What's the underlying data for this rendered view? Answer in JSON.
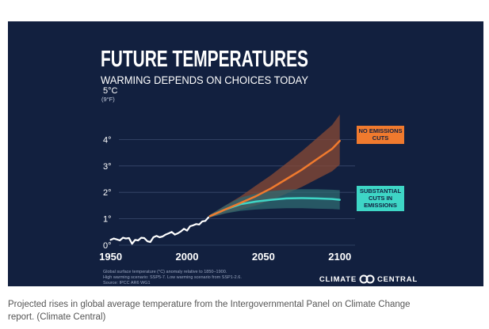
{
  "caption": {
    "line1": "Projected rises in global average temperature from the Intergovernmental Panel on Climate Change",
    "line2": "report. (Climate Central)"
  },
  "colors": {
    "panel_bg": "#12203f",
    "observed": "#ffffff",
    "no_cuts": "#f07a2e",
    "no_cuts_band": "#8a4a35",
    "substantial_cuts": "#3ed6c6",
    "cuts_band": "#2f6a72",
    "grid": "#3a4a6e",
    "axis_text": "#ffffff"
  },
  "chart_data": {
    "type": "line",
    "title": "FUTURE TEMPERATURES",
    "subtitle": "WARMING DEPENDS ON CHOICES TODAY",
    "ylabel_unit": "5°C",
    "ylabel_unit_f": "(9°F)",
    "x_ticks": [
      "1950",
      "2000",
      "2050",
      "2100"
    ],
    "y_ticks": [
      "0°",
      "1°",
      "2°",
      "3°",
      "4°"
    ],
    "xlim": [
      1945,
      2110
    ],
    "ylim": [
      0,
      5
    ],
    "grid": true,
    "series": [
      {
        "key": "observed",
        "x": [
          1950,
          1952,
          1954,
          1956,
          1958,
          1960,
          1962,
          1964,
          1966,
          1968,
          1970,
          1972,
          1974,
          1976,
          1978,
          1980,
          1982,
          1984,
          1986,
          1988,
          1990,
          1992,
          1994,
          1996,
          1998,
          2000,
          2002,
          2004,
          2006,
          2008,
          2010,
          2012,
          2014
        ],
        "y": [
          0.2,
          0.25,
          0.22,
          0.18,
          0.28,
          0.25,
          0.27,
          0.05,
          0.2,
          0.18,
          0.28,
          0.27,
          0.15,
          0.12,
          0.3,
          0.35,
          0.3,
          0.33,
          0.4,
          0.45,
          0.5,
          0.4,
          0.45,
          0.52,
          0.62,
          0.55,
          0.72,
          0.75,
          0.8,
          0.78,
          0.9,
          0.92,
          1.05
        ]
      },
      {
        "key": "no_cuts",
        "name": "NO EMISSIONS CUTS",
        "x": [
          2015,
          2025,
          2035,
          2045,
          2055,
          2065,
          2075,
          2085,
          2095,
          2100
        ],
        "y": [
          1.1,
          1.35,
          1.6,
          1.85,
          2.15,
          2.5,
          2.85,
          3.25,
          3.65,
          3.95
        ],
        "band_low": [
          1.05,
          1.2,
          1.35,
          1.5,
          1.7,
          1.95,
          2.2,
          2.5,
          2.8,
          3.05
        ],
        "band_high": [
          1.15,
          1.5,
          1.85,
          2.25,
          2.65,
          3.1,
          3.55,
          4.05,
          4.55,
          4.95
        ]
      },
      {
        "key": "substantial_cuts",
        "name": "SUBSTANTIAL CUTS IN EMISSIONS",
        "x": [
          2015,
          2025,
          2035,
          2045,
          2055,
          2065,
          2075,
          2085,
          2095,
          2100
        ],
        "y": [
          1.1,
          1.35,
          1.55,
          1.65,
          1.72,
          1.77,
          1.78,
          1.77,
          1.75,
          1.72
        ],
        "band_low": [
          1.05,
          1.2,
          1.3,
          1.35,
          1.38,
          1.4,
          1.4,
          1.38,
          1.37,
          1.35
        ],
        "band_high": [
          1.15,
          1.5,
          1.8,
          1.95,
          2.05,
          2.1,
          2.12,
          2.12,
          2.1,
          2.08
        ]
      }
    ],
    "annotations": {
      "no_cuts": [
        "NO EMISSIONS",
        "CUTS"
      ],
      "substantial_cuts": [
        "SUBSTANTIAL",
        "CUTS IN",
        "EMISSIONS"
      ]
    },
    "footnote": [
      "Global surface temperature (°C) anomaly relative to 1850–1900.",
      "High warming scenario: SSP5-7. Low warming scenario from SSP1-2.6.",
      "Source: IPCC AR6 WG1"
    ],
    "brand": "CLIMATE CENTRAL",
    "brand_parts": [
      "CLIMATE",
      "CENTRAL"
    ]
  }
}
